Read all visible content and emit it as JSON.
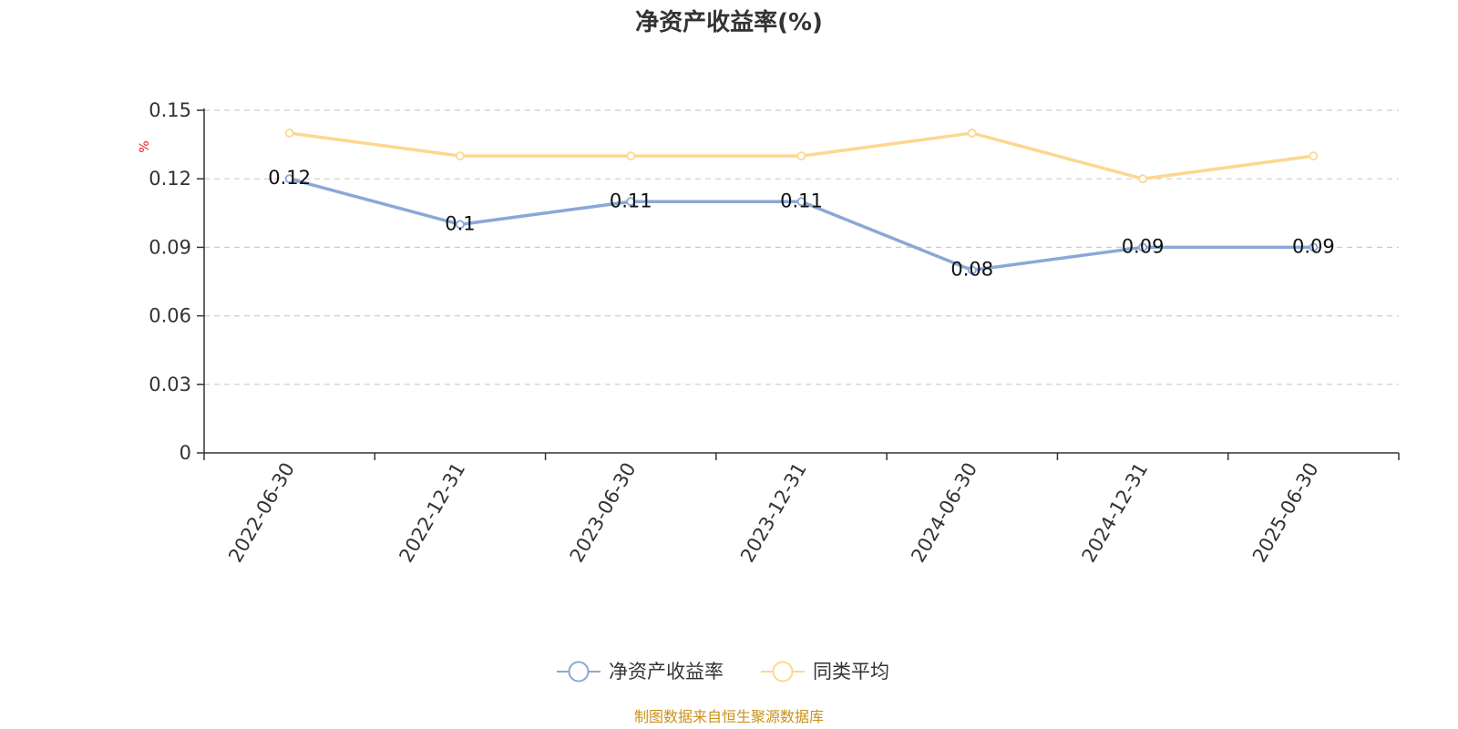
{
  "chart_data": {
    "type": "line",
    "title": "净资产收益率(%)",
    "y_unit": "%",
    "x": [
      "2022-06-30",
      "2022-12-31",
      "2023-06-30",
      "2023-12-31",
      "2024-06-30",
      "2024-12-31",
      "2025-06-30"
    ],
    "ylim": [
      0,
      0.15
    ],
    "yticks": [
      "0",
      "0.03",
      "0.06",
      "0.09",
      "0.12",
      "0.15"
    ],
    "grid": true,
    "legend_position": "bottom-center",
    "series": [
      {
        "name": "净资产收益率",
        "color": "#8aa8d6",
        "values": [
          0.12,
          0.1,
          0.11,
          0.11,
          0.08,
          0.09,
          0.09
        ],
        "labels": [
          "0.12",
          "0.1",
          "0.11",
          "0.11",
          "0.08",
          "0.09",
          "0.09"
        ],
        "show_labels": true
      },
      {
        "name": "同类平均",
        "color": "#fbd890",
        "values": [
          0.14,
          0.13,
          0.13,
          0.13,
          0.14,
          0.12,
          0.13
        ],
        "show_labels": false
      }
    ],
    "source": "制图数据来自恒生聚源数据库"
  }
}
